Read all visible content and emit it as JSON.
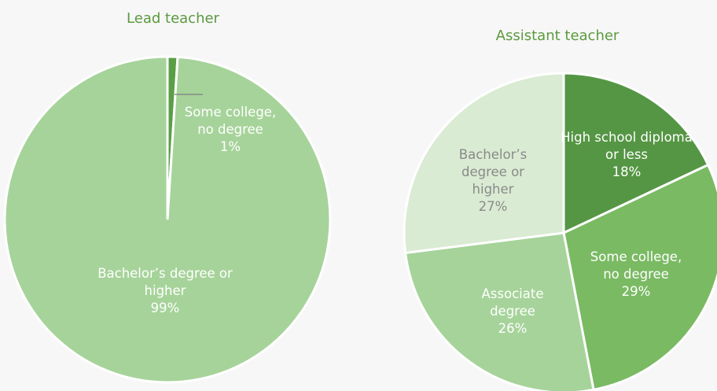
{
  "chart_data": [
    {
      "type": "pie",
      "title": "Lead teacher",
      "categories": [
        "Some college, no degree",
        "Bachelor’s degree or higher"
      ],
      "values": [
        1,
        99
      ],
      "value_labels": [
        "1%",
        "99%"
      ],
      "colors": [
        "#5a9e45",
        "#a6d39a"
      ]
    },
    {
      "type": "pie",
      "title": "Assistant teacher",
      "categories": [
        "High school diploma or less",
        "Some college, no degree",
        "Associate degree",
        "Bachelor’s degree or higher"
      ],
      "values": [
        18,
        29,
        26,
        27
      ],
      "value_labels": [
        "18%",
        "29%",
        "26%",
        "27%"
      ],
      "colors": [
        "#559644",
        "#7aba63",
        "#a6d39a",
        "#d9ebd2"
      ]
    }
  ]
}
